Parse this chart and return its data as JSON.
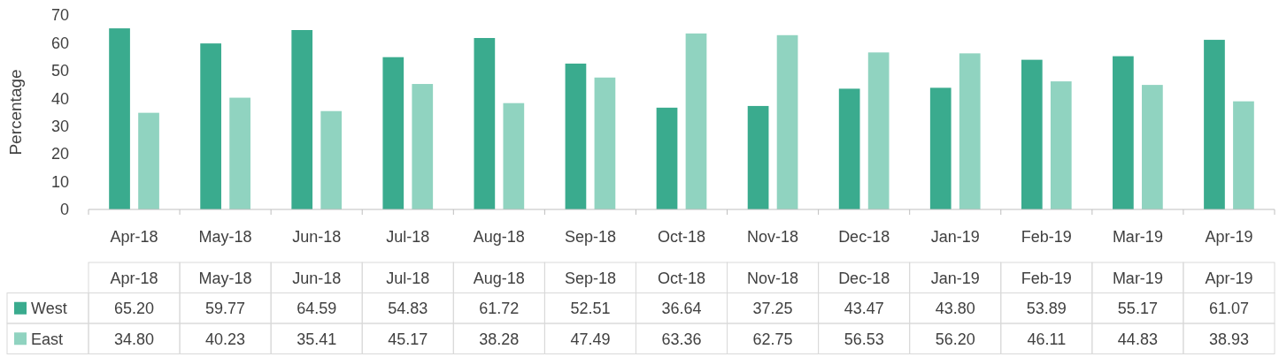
{
  "chart_data": {
    "type": "bar",
    "ylabel": "Percentage",
    "categories": [
      "Apr-18",
      "May-18",
      "Jun-18",
      "Jul-18",
      "Aug-18",
      "Sep-18",
      "Oct-18",
      "Nov-18",
      "Dec-18",
      "Jan-19",
      "Feb-19",
      "Mar-19",
      "Apr-19"
    ],
    "series": [
      {
        "name": "West",
        "color": "#3aab8e",
        "values": [
          65.2,
          59.77,
          64.59,
          54.83,
          61.72,
          52.51,
          36.64,
          37.25,
          43.47,
          43.8,
          53.89,
          55.17,
          61.07
        ],
        "value_labels": [
          "65.20",
          "59.77",
          "64.59",
          "54.83",
          "61.72",
          "52.51",
          "36.64",
          "37.25",
          "43.47",
          "43.80",
          "53.89",
          "55.17",
          "61.07"
        ]
      },
      {
        "name": "East",
        "color": "#90d3c0",
        "values": [
          34.8,
          40.23,
          35.41,
          45.17,
          38.28,
          47.49,
          63.36,
          62.75,
          56.53,
          56.2,
          46.11,
          44.83,
          38.93
        ],
        "value_labels": [
          "34.80",
          "40.23",
          "35.41",
          "45.17",
          "38.28",
          "47.49",
          "63.36",
          "62.75",
          "56.53",
          "56.20",
          "46.11",
          "44.83",
          "38.93"
        ]
      }
    ],
    "ylim": [
      0,
      70
    ],
    "yticks": [
      0,
      10,
      20,
      30,
      40,
      50,
      60,
      70
    ],
    "grid": false,
    "legend": "bottom left"
  }
}
